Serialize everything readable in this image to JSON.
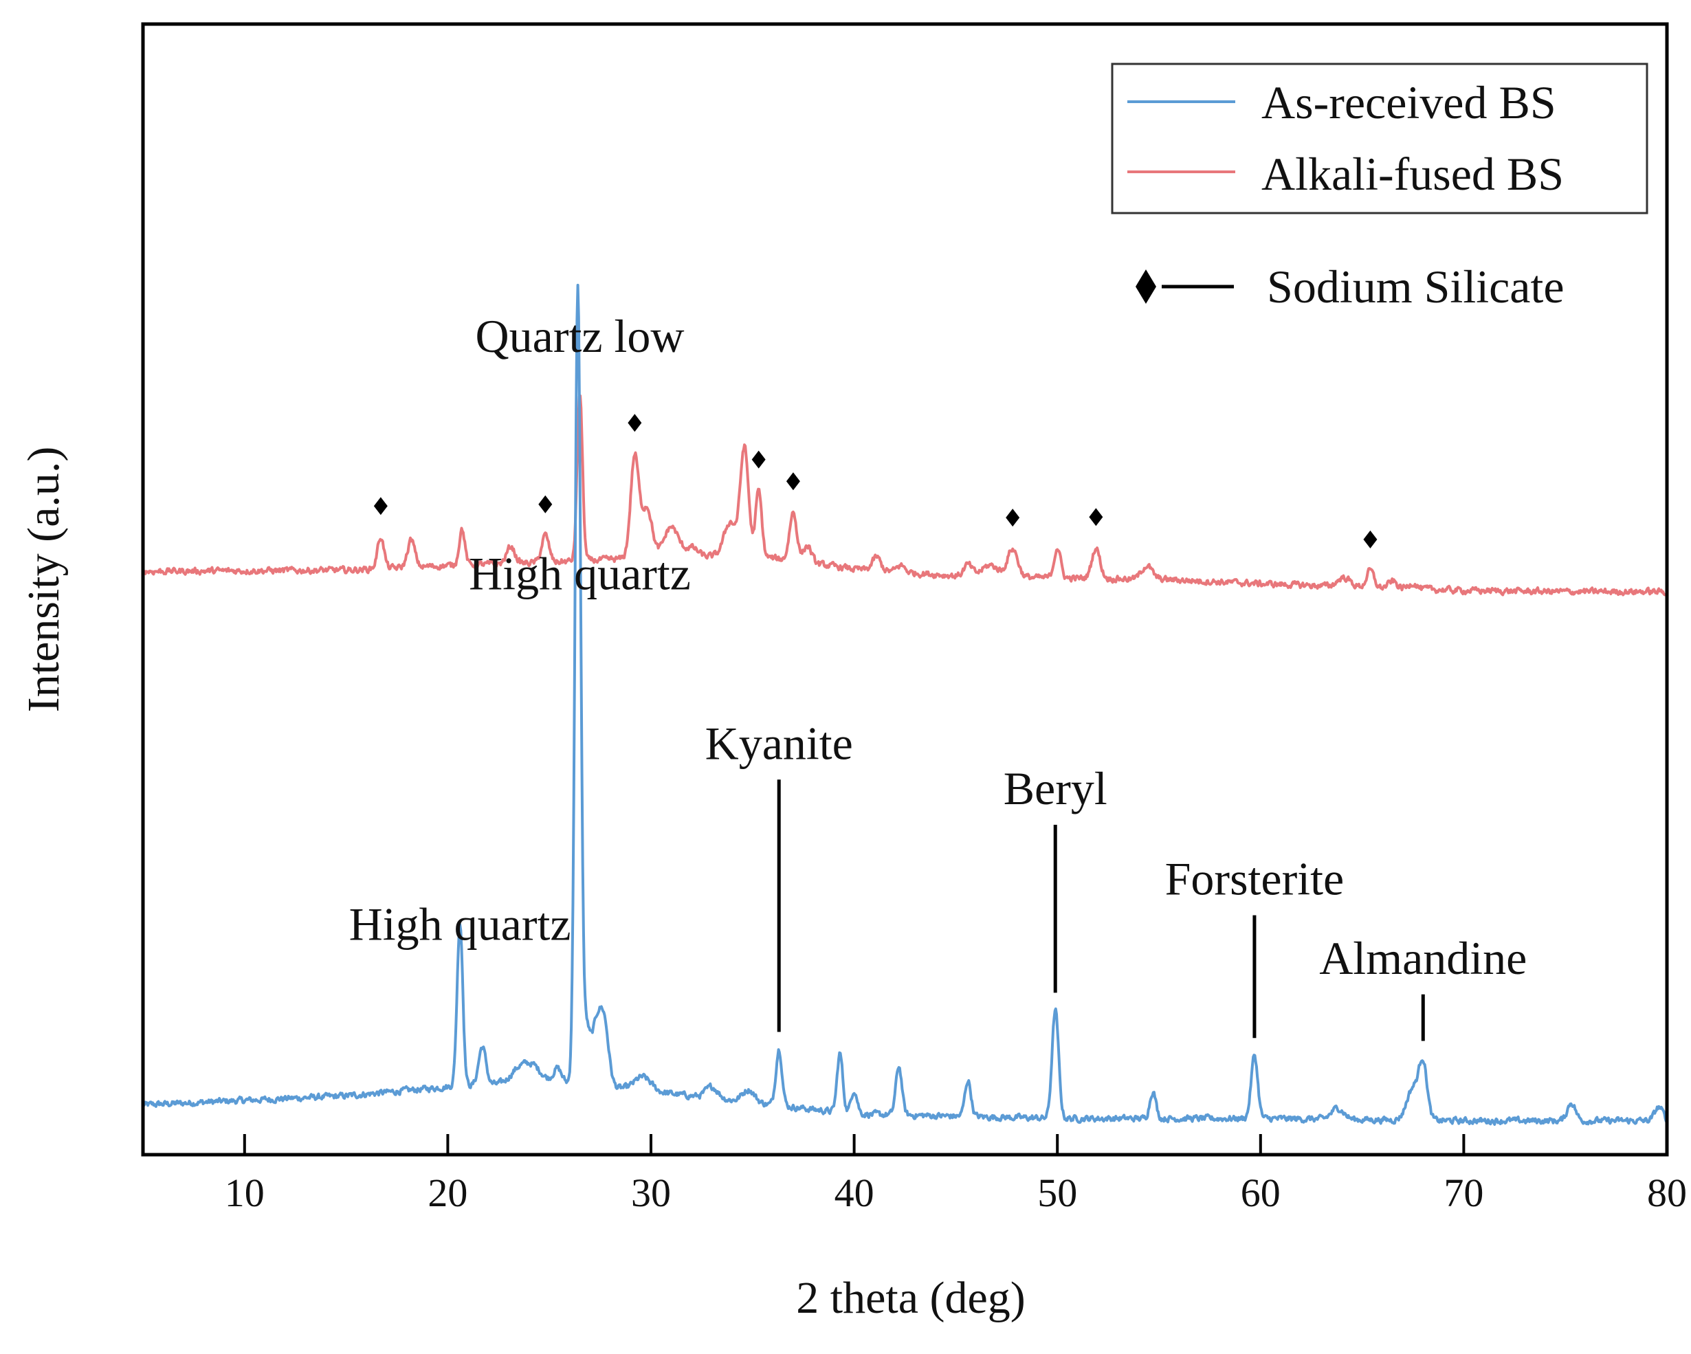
{
  "chart_data": {
    "type": "line",
    "xlabel": "2 theta (deg)",
    "ylabel": "Intensity (a.u.)",
    "xlim": [
      5,
      80
    ],
    "ylim": [
      0,
      100
    ],
    "xticks": [
      10,
      20,
      30,
      40,
      50,
      60,
      70,
      80
    ],
    "colors": {
      "as_received": "#5b9bd5",
      "alkali_fused": "#e8777b"
    },
    "series": [
      {
        "name": "As-received BS",
        "key": "as_received",
        "baseline": [
          [
            5,
            4.4
          ],
          [
            15,
            5.2
          ],
          [
            20,
            6.0
          ],
          [
            25,
            6.5
          ],
          [
            30,
            5.6
          ],
          [
            40,
            3.6
          ],
          [
            50,
            3.2
          ],
          [
            60,
            3.2
          ],
          [
            70,
            3.0
          ],
          [
            80,
            3.0
          ]
        ],
        "peaks": [
          [
            20.6,
            14.5,
            0.14
          ],
          [
            21.7,
            3.4,
            0.18
          ],
          [
            23.5,
            1.2,
            0.4
          ],
          [
            24.2,
            1.3,
            0.4
          ],
          [
            25.4,
            1.2,
            0.2
          ],
          [
            26.4,
            70.0,
            0.14
          ],
          [
            26.8,
            5.0,
            0.18
          ],
          [
            27.3,
            5.0,
            0.22
          ],
          [
            27.7,
            5.5,
            0.22
          ],
          [
            29.6,
            1.2,
            0.4
          ],
          [
            33.0,
            1.0,
            0.3
          ],
          [
            34.8,
            1.1,
            0.3
          ],
          [
            36.3,
            5.0,
            0.15
          ],
          [
            39.3,
            5.2,
            0.14
          ],
          [
            40.0,
            2.1,
            0.15
          ],
          [
            42.2,
            4.3,
            0.15
          ],
          [
            45.6,
            3.2,
            0.15
          ],
          [
            49.9,
            9.6,
            0.16
          ],
          [
            54.7,
            2.4,
            0.15
          ],
          [
            59.7,
            5.6,
            0.16
          ],
          [
            63.8,
            1.0,
            0.3
          ],
          [
            67.5,
            2.8,
            0.3
          ],
          [
            68.0,
            4.8,
            0.2
          ],
          [
            75.3,
            1.6,
            0.2
          ],
          [
            79.6,
            1.2,
            0.2
          ]
        ]
      },
      {
        "name": "Alkali-fused BS",
        "key": "alkali_fused",
        "baseline": [
          [
            5,
            51.6
          ],
          [
            15,
            51.7
          ],
          [
            20,
            52.1
          ],
          [
            25,
            52.4
          ],
          [
            30,
            52.8
          ],
          [
            35,
            53.0
          ],
          [
            40,
            51.8
          ],
          [
            45,
            51.2
          ],
          [
            50,
            51.0
          ],
          [
            55,
            50.9
          ],
          [
            60,
            50.5
          ],
          [
            65,
            50.2
          ],
          [
            70,
            49.9
          ],
          [
            75,
            49.8
          ],
          [
            80,
            49.8
          ]
        ],
        "peaks": [
          [
            16.7,
            2.8,
            0.16
          ],
          [
            18.2,
            2.4,
            0.18
          ],
          [
            20.7,
            3.2,
            0.14
          ],
          [
            23.1,
            1.5,
            0.2
          ],
          [
            24.8,
            2.4,
            0.18
          ],
          [
            26.5,
            14.8,
            0.13
          ],
          [
            29.2,
            9.0,
            0.2
          ],
          [
            29.8,
            4.5,
            0.25
          ],
          [
            31.0,
            2.7,
            0.35
          ],
          [
            32.0,
            0.8,
            0.3
          ],
          [
            33.9,
            3.0,
            0.3
          ],
          [
            34.6,
            9.5,
            0.2
          ],
          [
            35.3,
            5.8,
            0.15
          ],
          [
            37.0,
            4.3,
            0.18
          ],
          [
            37.7,
            1.5,
            0.2
          ],
          [
            41.1,
            1.2,
            0.2
          ],
          [
            42.3,
            0.6,
            0.2
          ],
          [
            45.6,
            1.0,
            0.2
          ],
          [
            46.7,
            1.0,
            0.4
          ],
          [
            47.8,
            2.5,
            0.25
          ],
          [
            50.0,
            2.7,
            0.16
          ],
          [
            51.9,
            2.7,
            0.2
          ],
          [
            54.4,
            1.2,
            0.25
          ],
          [
            64.1,
            0.8,
            0.3
          ],
          [
            65.4,
            1.5,
            0.18
          ],
          [
            66.5,
            0.6,
            0.2
          ],
          [
            67.5,
            0.5,
            0.2
          ]
        ]
      }
    ],
    "legend": {
      "position": "top-right",
      "entries": [
        "As-received BS",
        "Alkali-fused BS"
      ]
    },
    "marker_legend": "Sodium Silicate",
    "sodium_silicate_markers": [
      16.7,
      24.8,
      29.2,
      35.3,
      37.0,
      47.8,
      51.9,
      65.4
    ],
    "annotations": [
      {
        "text": "Quartz low",
        "x": 26.5,
        "y": 71,
        "line": false
      },
      {
        "text": "High quartz",
        "x": 26.5,
        "y": 50,
        "line": false
      },
      {
        "text": "High quartz",
        "x": 20.6,
        "y": 19,
        "line": false
      },
      {
        "text": "Kyanite",
        "x": 36.3,
        "y": 35,
        "line": true
      },
      {
        "text": "Beryl",
        "x": 49.9,
        "y": 31,
        "line": true
      },
      {
        "text": "Forsterite",
        "x": 59.7,
        "y": 23,
        "line": true
      },
      {
        "text": "Almandine",
        "x": 68.0,
        "y": 16,
        "line": true
      }
    ]
  }
}
